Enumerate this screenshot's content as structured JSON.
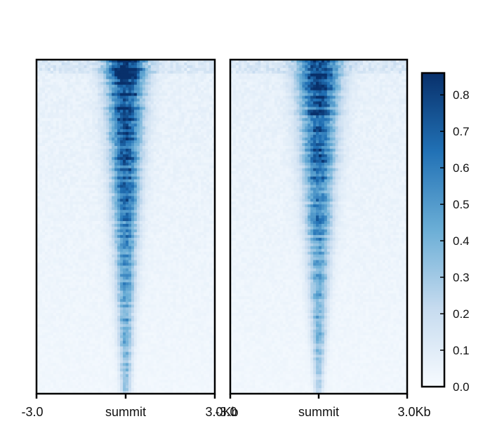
{
  "chart_data": {
    "type": "heatmap",
    "title": "",
    "xlabel": "",
    "ylabel": "",
    "panels": [
      {
        "name": "",
        "x_tick_labels": [
          "-3.0",
          "summit",
          "3.0Kb"
        ],
        "x_range_kb": [
          -3.0,
          3.0
        ],
        "rows_sorted": "descending signal",
        "peak_max_value": 0.85,
        "peak_min_value": 0.3,
        "peak_width_start_kb": 0.45,
        "peak_width_end_kb": 0.12,
        "background_value": 0.05
      },
      {
        "name": "",
        "x_tick_labels": [
          "-3.0",
          "summit",
          "3.0Kb"
        ],
        "x_range_kb": [
          -3.0,
          3.0
        ],
        "rows_sorted": "descending signal",
        "peak_max_value": 0.8,
        "peak_min_value": 0.25,
        "peak_width_start_kb": 0.5,
        "peak_width_end_kb": 0.1,
        "background_value": 0.05
      }
    ],
    "colorbar": {
      "min": 0.0,
      "max": 0.86,
      "ticks": [
        "0.0",
        "0.1",
        "0.2",
        "0.3",
        "0.4",
        "0.5",
        "0.6",
        "0.7",
        "0.8"
      ],
      "tick_values": [
        0.0,
        0.1,
        0.2,
        0.3,
        0.4,
        0.5,
        0.6,
        0.7,
        0.8
      ],
      "colors": [
        "#f7fbff",
        "#c6dbef",
        "#6baed6",
        "#2171b5",
        "#08306b"
      ]
    }
  }
}
